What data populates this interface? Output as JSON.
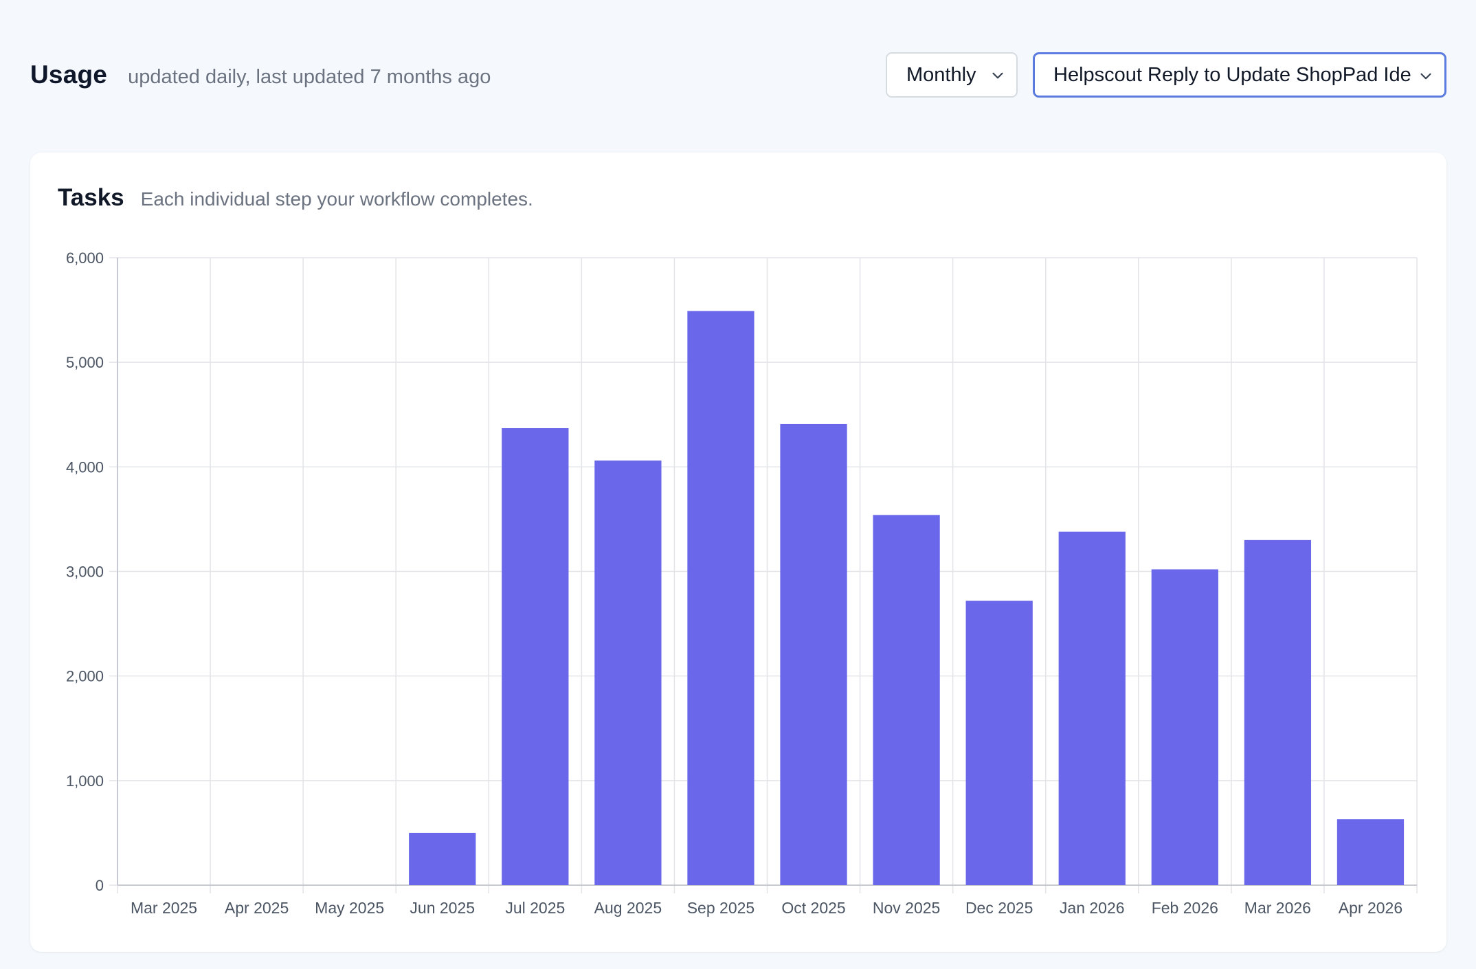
{
  "header": {
    "title": "Usage",
    "subtitle": "updated daily, last updated 7 months ago"
  },
  "controls": {
    "period_value": "Monthly",
    "workflow_value": "Helpscout Reply to Update ShopPad Ide"
  },
  "card": {
    "title": "Tasks",
    "subtitle": "Each individual step your workflow completes."
  },
  "colors": {
    "bar": "#6a67ea",
    "grid": "#e3e4e8",
    "axis_text": "#4b5563",
    "select_focus_border": "#5b7be0"
  },
  "icons": {
    "select_chevron": "chevron-down-icon"
  },
  "chart_data": {
    "type": "bar",
    "title": "",
    "xlabel": "",
    "ylabel": "",
    "categories": [
      "Mar 2025",
      "Apr 2025",
      "May 2025",
      "Jun 2025",
      "Jul 2025",
      "Aug 2025",
      "Sep 2025",
      "Oct 2025",
      "Nov 2025",
      "Dec 2025",
      "Jan 2026",
      "Feb 2026",
      "Mar 2026",
      "Apr 2026"
    ],
    "values": [
      0,
      0,
      0,
      500,
      4370,
      4060,
      5490,
      4410,
      3540,
      2720,
      3380,
      3020,
      3300,
      630
    ],
    "ylim": [
      0,
      6000
    ],
    "yticks": [
      0,
      1000,
      2000,
      3000,
      4000,
      5000,
      6000
    ],
    "ytick_labels": [
      "0",
      "1,000",
      "2,000",
      "3,000",
      "4,000",
      "5,000",
      "6,000"
    ],
    "grid": true,
    "legend": "none"
  }
}
